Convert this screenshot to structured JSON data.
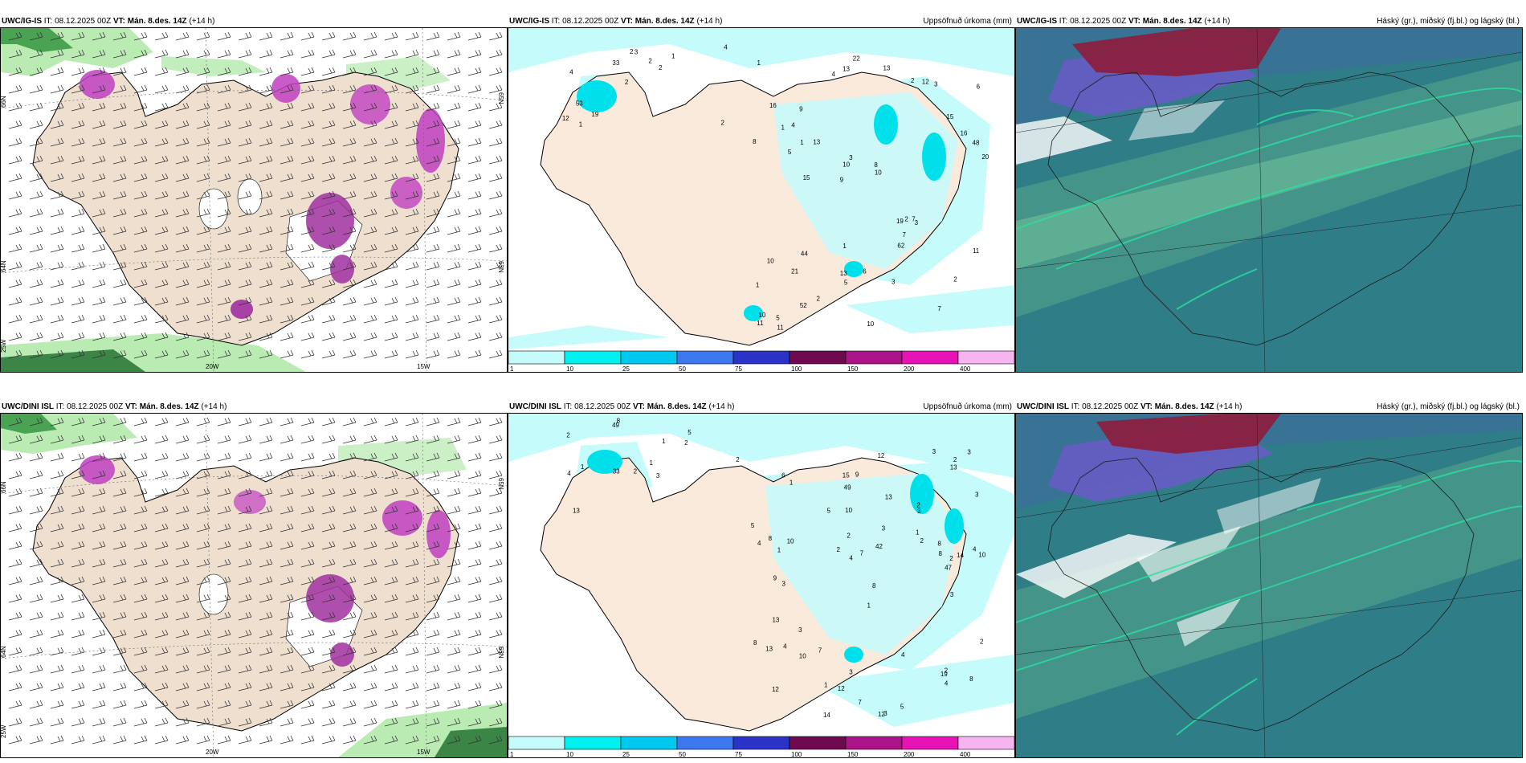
{
  "rows": [
    {
      "model": "UWC/IG-IS",
      "panels": [
        {
          "model": "UWC/IG-IS",
          "it_label": "IT:",
          "it": "08.12.2025 00Z",
          "vt_label": "VT:",
          "vt": "Mán. 8.des. 14Z",
          "lead": "(+14 h)",
          "right": ""
        },
        {
          "model": "UWC/IG-IS",
          "it_label": "IT:",
          "it": "08.12.2025 00Z",
          "vt_label": "VT:",
          "vt": "Mán. 8.des. 14Z",
          "lead": "(+14 h)",
          "right": "Uppsöfnuð úrkoma (mm)"
        },
        {
          "model": "UWC/IG-IS",
          "it_label": "IT:",
          "it": "08.12.2025 00Z",
          "vt_label": "VT:",
          "vt": "Mán. 8.des. 14Z",
          "lead": "(+14 h)",
          "right": "Háský (gr.), miðský (fj.bl.) og lágský (bl.)"
        }
      ]
    },
    {
      "model": "UWC/DINI ISL",
      "panels": [
        {
          "model": "UWC/DINI ISL",
          "it_label": "IT:",
          "it": "08.12.2025 00Z",
          "vt_label": "VT:",
          "vt": "Mán. 8.des. 14Z",
          "lead": "(+14 h)",
          "right": ""
        },
        {
          "model": "UWC/DINI ISL",
          "it_label": "IT:",
          "it": "08.12.2025 00Z",
          "vt_label": "VT:",
          "vt": "Mán. 8.des. 14Z",
          "lead": "(+14 h)",
          "right": "Uppsöfnuð úrkoma (mm)"
        },
        {
          "model": "UWC/DINI ISL",
          "it_label": "IT:",
          "it": "08.12.2025 00Z",
          "vt_label": "VT:",
          "vt": "Mán. 8.des. 14Z",
          "lead": "(+14 h)",
          "right": "Háský (gr.), miðský (fj.bl.) og lágský (bl.)"
        }
      ]
    }
  ],
  "axis_labels": {
    "lat66": "66N",
    "lat64": "64N",
    "lat25w": "25W",
    "lon20w": "20W",
    "lon15w": "15W",
    "lat65": "65N",
    "lat63": "63N"
  },
  "colorbar": {
    "ticks": [
      "1",
      "10",
      "25",
      "50",
      "75",
      "100",
      "150",
      "200",
      "400"
    ],
    "colors": [
      "#c6fbfb",
      "#00f0f0",
      "#00c8ee",
      "#3c78f0",
      "#2a32c8",
      "#6e0a50",
      "#aa1488",
      "#e614b4",
      "#f6b4f0"
    ]
  },
  "precip_labels_top": [
    "2",
    "4",
    "4",
    "2",
    "1",
    "1",
    "2",
    "2",
    "53",
    "33",
    "12",
    "19",
    "3",
    "2",
    "3",
    "16",
    "13",
    "20",
    "19",
    "16",
    "9",
    "13",
    "10",
    "9",
    "2",
    "44",
    "7",
    "2",
    "7",
    "10",
    "13",
    "5",
    "62",
    "52",
    "48",
    "8",
    "10",
    "5",
    "10",
    "10",
    "15",
    "6",
    "7",
    "3",
    "21",
    "11",
    "11",
    "6",
    "3",
    "22",
    "15",
    "8",
    "4",
    "12",
    "5",
    "13",
    "4",
    "3",
    "11",
    "1",
    "2",
    "2",
    "1",
    "1",
    "1",
    "1"
  ],
  "precip_labels_bottom": [
    "8",
    "5",
    "2",
    "2",
    "3",
    "1",
    "2",
    "2",
    "4",
    "1",
    "1",
    "13",
    "49",
    "33",
    "12",
    "3",
    "3",
    "3",
    "2",
    "3",
    "1",
    "9",
    "10",
    "14",
    "8",
    "8",
    "4",
    "8",
    "2",
    "13",
    "19",
    "13",
    "4",
    "2",
    "4",
    "2",
    "8",
    "12",
    "3",
    "9",
    "12",
    "14",
    "5",
    "6",
    "7",
    "3",
    "4",
    "2",
    "5",
    "8",
    "49",
    "47",
    "42",
    "13",
    "12",
    "10",
    "2",
    "7",
    "2",
    "10",
    "8",
    "3",
    "1",
    "7",
    "1",
    "4",
    "2",
    "3",
    "5",
    "3",
    "13",
    "15",
    "4",
    "1",
    "3",
    "10",
    "1"
  ],
  "cloud_legend": {
    "high": "gr.",
    "mid": "fj.bl.",
    "low": "bl."
  }
}
